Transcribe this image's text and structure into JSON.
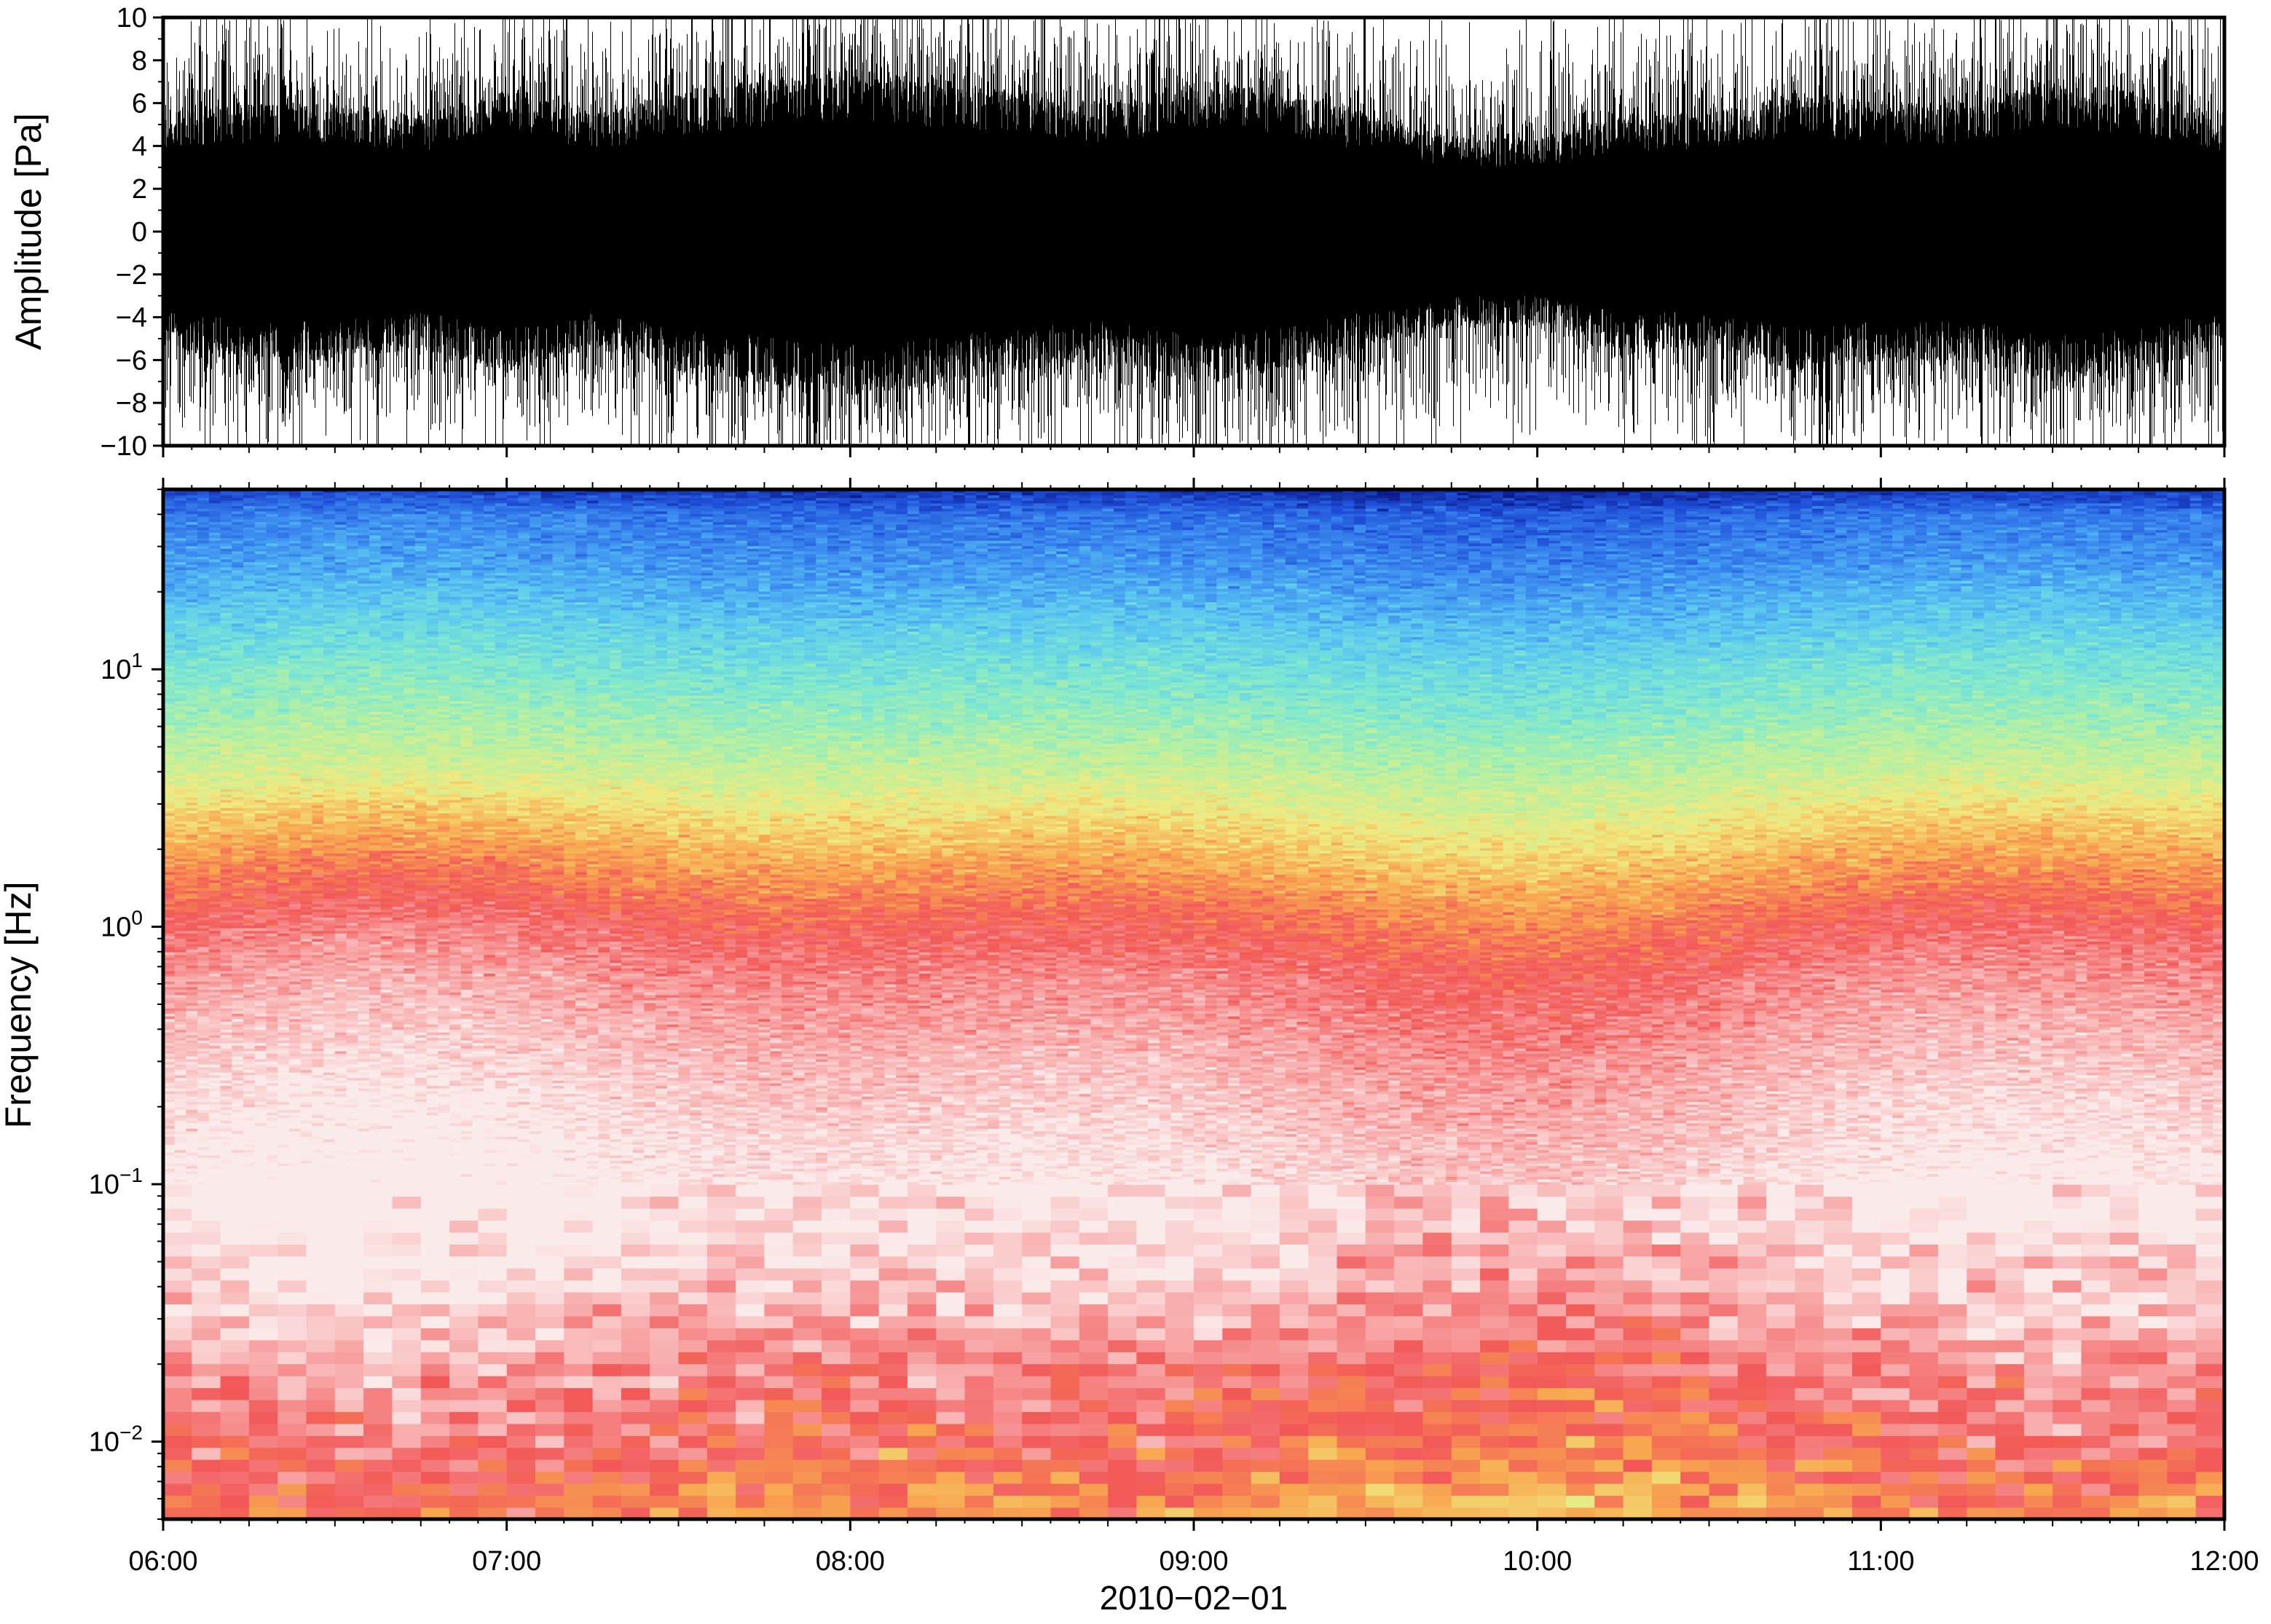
{
  "chart_data": [
    {
      "type": "line",
      "panel": "waveform",
      "ylabel": "Amplitude [Pa]",
      "ylim": [
        -10,
        10
      ],
      "yticks": [
        -10,
        -8,
        -6,
        -4,
        -2,
        0,
        2,
        4,
        6,
        8,
        10
      ],
      "ytick_labels": [
        "−10",
        "−8",
        "−6",
        "−4",
        "−2",
        "0",
        "2",
        "4",
        "6",
        "8",
        "10"
      ],
      "xlim": [
        "06:00",
        "12:00"
      ],
      "envelope": {
        "times": [
          "06:00",
          "06:15",
          "06:30",
          "06:45",
          "07:00",
          "07:15",
          "07:30",
          "07:45",
          "08:00",
          "08:15",
          "08:30",
          "08:45",
          "09:00",
          "09:15",
          "09:30",
          "09:45",
          "10:00",
          "10:15",
          "10:30",
          "10:45",
          "11:00",
          "11:15",
          "11:30",
          "11:45",
          "12:00"
        ],
        "typical_amplitude": [
          5,
          5.5,
          5.5,
          5,
          6,
          5,
          6,
          6.5,
          7,
          6.5,
          6,
          5.5,
          6.5,
          6,
          5,
          4,
          4,
          5,
          5,
          6,
          5.5,
          5.5,
          6.5,
          6,
          5
        ],
        "peak_amplitude": [
          10,
          10,
          10,
          10,
          10,
          10,
          10,
          10,
          10,
          10,
          10,
          10,
          10,
          10,
          10,
          10,
          10,
          10,
          10,
          10,
          10,
          10,
          10,
          10,
          10
        ]
      },
      "grid": false
    },
    {
      "type": "heatmap",
      "panel": "spectrogram",
      "ylabel": "Frequency [Hz]",
      "yscale": "log",
      "ylim": [
        0.005,
        50
      ],
      "yticks": [
        0.01,
        0.1,
        1,
        10
      ],
      "ytick_labels": [
        {
          "base": "10",
          "exp": "−2"
        },
        {
          "base": "10",
          "exp": "−1"
        },
        {
          "base": "10",
          "exp": "0"
        },
        {
          "base": "10",
          "exp": "1"
        }
      ],
      "xlabel": "2010−02−01",
      "xticks": [
        "06:00",
        "07:00",
        "08:00",
        "09:00",
        "10:00",
        "11:00",
        "12:00"
      ],
      "xlim": [
        "06:00",
        "12:00"
      ],
      "colormap": [
        "#0a1a8c",
        "#1f4fd8",
        "#3c8cf0",
        "#5cc8f0",
        "#7ee8d0",
        "#b8f0a0",
        "#f0ea80",
        "#f8a850",
        "#f25858",
        "#f8a8a8",
        "#fbeaea"
      ],
      "profile": {
        "log10_freq": [
          -2.3,
          -2.0,
          -1.7,
          -1.4,
          -1.0,
          -0.6,
          -0.2,
          0.0,
          0.2,
          0.4,
          0.6,
          0.8,
          1.0,
          1.2,
          1.4,
          1.6,
          1.7
        ],
        "color_level": [
          7.2,
          8.0,
          8.6,
          9.5,
          10.0,
          9.4,
          8.6,
          8.0,
          7.2,
          6.3,
          5.3,
          4.5,
          3.8,
          3.0,
          2.2,
          1.6,
          0.5
        ]
      },
      "grid": false
    }
  ],
  "colors": {
    "waveform": "#000000",
    "frame": "#000000"
  }
}
